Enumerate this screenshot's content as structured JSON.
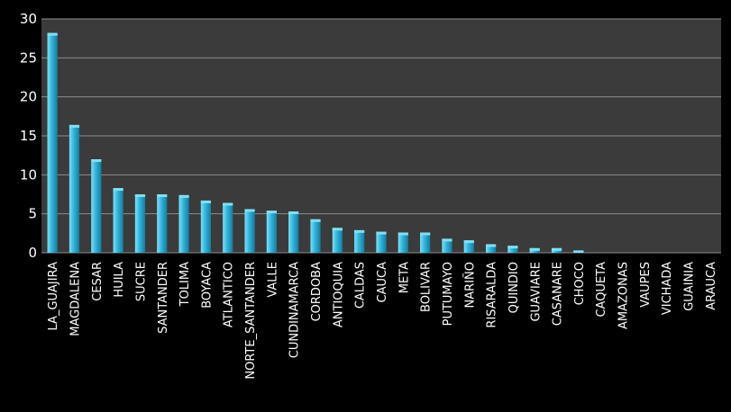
{
  "chart_data": {
    "type": "bar",
    "categories": [
      "LA_GUAJIRA",
      "MAGDALENA",
      "CESAR",
      "HUILA",
      "SUCRE",
      "SANTANDER",
      "TOLIMA",
      "BOYACA",
      "ATLANTICO",
      "NORTE_SANTANDER",
      "VALLE",
      "CUNDINAMARCA",
      "CORDOBA",
      "ANTIOQUIA",
      "CALDAS",
      "CAUCA",
      "META",
      "BOLIVAR",
      "PUTUMAYO",
      "NARIÑO",
      "RISARALDA",
      "QUINDIO",
      "GUAVIARE",
      "CASANARE",
      "CHOCO",
      "CAQUETA",
      "AMAZONAS",
      "VAUPES",
      "VICHADA",
      "GUAINIA",
      "ARAUCA"
    ],
    "values": [
      28.2,
      16.4,
      12.0,
      8.3,
      7.5,
      7.5,
      7.4,
      6.7,
      6.4,
      5.6,
      5.4,
      5.3,
      4.3,
      3.2,
      2.9,
      2.7,
      2.6,
      2.6,
      1.8,
      1.6,
      1.1,
      0.9,
      0.6,
      0.6,
      0.3,
      0,
      0,
      0,
      0,
      0,
      0
    ],
    "title": "",
    "xlabel": "",
    "ylabel": "",
    "ylim": [
      0,
      30
    ],
    "yticks": [
      "0",
      "5",
      "10",
      "15",
      "20",
      "25",
      "30"
    ],
    "grid": true,
    "colors": {
      "background": "#000000",
      "plot_area": "#3b3b3b",
      "grid": "#8c8c8c",
      "bar_top": "#7fe0f5",
      "bar_mid": "#2fb4dc",
      "bar_bottom": "#157d9d",
      "text": "#ffffff"
    }
  }
}
